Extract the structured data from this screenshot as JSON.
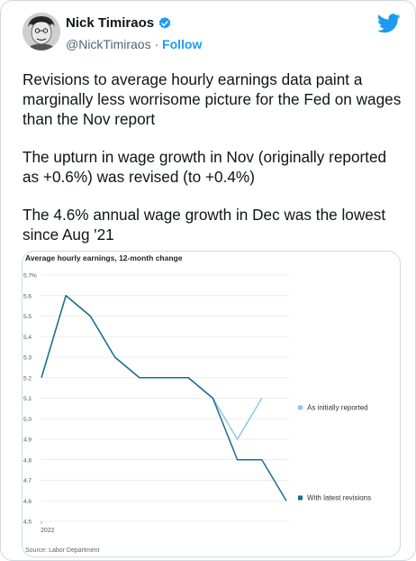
{
  "tweet": {
    "author_name": "Nick Timiraos",
    "handle": "@NickTimiraos",
    "separator": "·",
    "follow_label": "Follow",
    "paragraphs": [
      "Revisions to average hourly earnings data paint a marginally less worrisome picture for the Fed on wages than the Nov report",
      "The upturn in wage growth in Nov (originally reported as +0.6%) was revised (to +0.4%)",
      "The 4.6% annual wage growth in Dec was the lowest since Aug '21"
    ]
  },
  "colors": {
    "twitter_blue": "#1d9bf0",
    "initial_series": "#8ec8e6",
    "revised_series": "#1a6e8e"
  },
  "icons": [
    "avatar",
    "verified-badge-icon",
    "twitter-bird-icon"
  ],
  "chart_data": {
    "type": "line",
    "title": "Average hourly earnings, 12-month change",
    "source": "Source: Labor Department",
    "xlabel": "",
    "ylabel": "",
    "ylim": [
      4.5,
      5.7
    ],
    "y_ticks": [
      "5.7%",
      "5.6",
      "5.5",
      "5.4",
      "5.3",
      "5.2",
      "5.1",
      "5.0",
      "4.9",
      "4.8",
      "4.7",
      "4.6",
      "4.5"
    ],
    "x_tick_labels": [
      "2022"
    ],
    "series": [
      {
        "name": "As initially reported",
        "values": [
          5.2,
          5.6,
          5.5,
          5.3,
          5.2,
          5.2,
          5.2,
          5.1,
          4.9,
          5.1
        ]
      },
      {
        "name": "With latest revisions",
        "values": [
          5.2,
          5.6,
          5.5,
          5.3,
          5.2,
          5.2,
          5.2,
          5.1,
          4.8,
          4.8,
          4.6
        ]
      }
    ],
    "grid": true,
    "legend": "right"
  }
}
